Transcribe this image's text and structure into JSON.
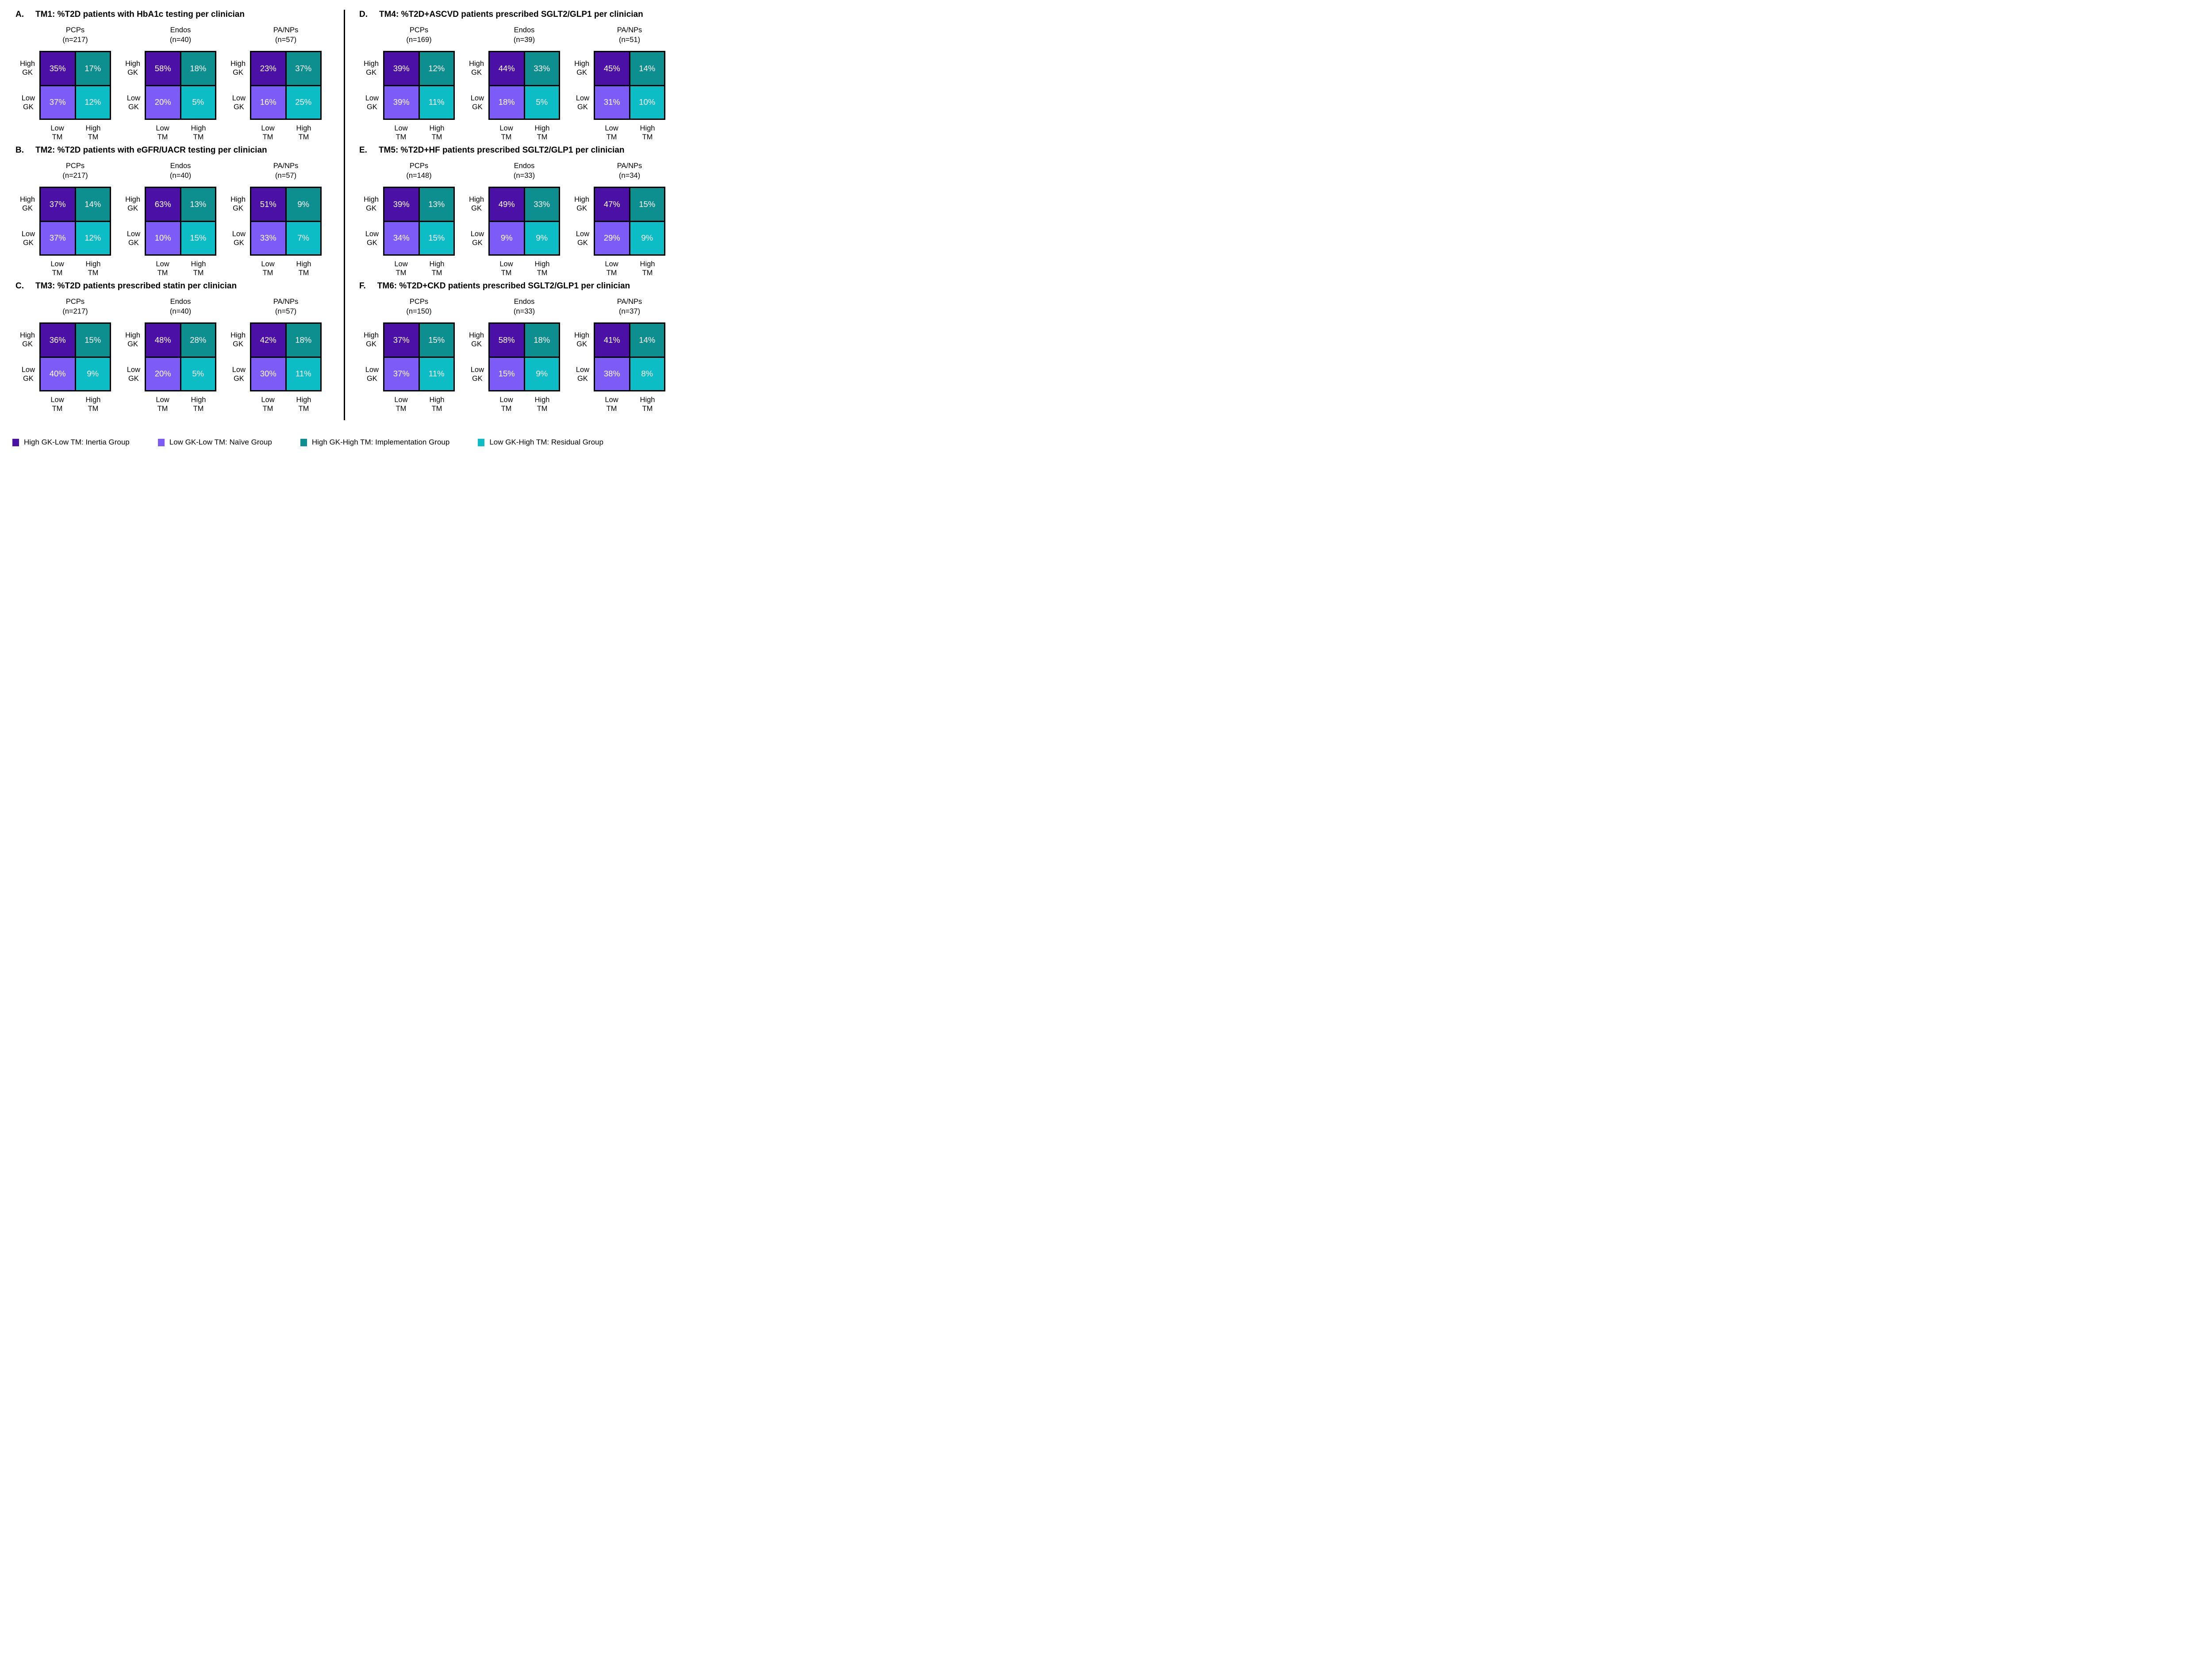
{
  "ui": {
    "row_labels": [
      [
        "High",
        "GK"
      ],
      [
        "Low",
        "GK"
      ]
    ],
    "col_labels": [
      [
        "Low",
        "TM"
      ],
      [
        "High",
        "TM"
      ]
    ]
  },
  "colors": {
    "inertia": "#4B11A7",
    "naive": "#7C5BF6",
    "implementation": "#0E8F8F",
    "residual": "#0CBDC5",
    "border": "#000000",
    "cell_text": "#FFFFFF"
  },
  "legend": [
    {
      "quadrant": "high_gk_low_tm",
      "label": "High GK-Low TM: Inertia Group",
      "color": "#4B11A7"
    },
    {
      "quadrant": "low_gk_low_tm",
      "label": "Low GK-Low TM: Naïve Group",
      "color": "#7C5BF6"
    },
    {
      "quadrant": "high_gk_high_tm",
      "label": "High GK-High TM: Implementation Group",
      "color": "#0E8F8F"
    },
    {
      "quadrant": "low_gk_high_tm",
      "label": "Low GK-High TM: Residual Group",
      "color": "#0CBDC5"
    }
  ],
  "chart_data": [
    {
      "type": "heatmap",
      "letter": "A.",
      "title": "TM1: %T2D patients with HbA1c testing per clinician",
      "rows": [
        "High GK",
        "Low GK"
      ],
      "cols": [
        "Low TM",
        "High TM"
      ],
      "groups": [
        {
          "name": "PCPs",
          "n": 217,
          "n_label": "(n=217)",
          "values": [
            [
              35,
              17
            ],
            [
              37,
              12
            ]
          ]
        },
        {
          "name": "Endos",
          "n": 40,
          "n_label": "(n=40)",
          "values": [
            [
              58,
              18
            ],
            [
              20,
              5
            ]
          ]
        },
        {
          "name": "PA/NPs",
          "n": 57,
          "n_label": "(n=57)",
          "values": [
            [
              23,
              37
            ],
            [
              16,
              25
            ]
          ]
        }
      ]
    },
    {
      "type": "heatmap",
      "letter": "B.",
      "title": "TM2: %T2D patients with eGFR/UACR testing per clinician",
      "rows": [
        "High GK",
        "Low GK"
      ],
      "cols": [
        "Low TM",
        "High TM"
      ],
      "groups": [
        {
          "name": "PCPs",
          "n": 217,
          "n_label": "(n=217)",
          "values": [
            [
              37,
              14
            ],
            [
              37,
              12
            ]
          ]
        },
        {
          "name": "Endos",
          "n": 40,
          "n_label": "(n=40)",
          "values": [
            [
              63,
              13
            ],
            [
              10,
              15
            ]
          ]
        },
        {
          "name": "PA/NPs",
          "n": 57,
          "n_label": "(n=57)",
          "values": [
            [
              51,
              9
            ],
            [
              33,
              7
            ]
          ]
        }
      ]
    },
    {
      "type": "heatmap",
      "letter": "C.",
      "title": "TM3: %T2D patients prescribed statin per clinician",
      "rows": [
        "High GK",
        "Low GK"
      ],
      "cols": [
        "Low TM",
        "High TM"
      ],
      "groups": [
        {
          "name": "PCPs",
          "n": 217,
          "n_label": "(n=217)",
          "values": [
            [
              36,
              15
            ],
            [
              40,
              9
            ]
          ]
        },
        {
          "name": "Endos",
          "n": 40,
          "n_label": "(n=40)",
          "values": [
            [
              48,
              28
            ],
            [
              20,
              5
            ]
          ]
        },
        {
          "name": "PA/NPs",
          "n": 57,
          "n_label": "(n=57)",
          "values": [
            [
              42,
              18
            ],
            [
              30,
              11
            ]
          ]
        }
      ]
    },
    {
      "type": "heatmap",
      "letter": "D.",
      "title": "TM4: %T2D+ASCVD patients prescribed SGLT2/GLP1 per clinician",
      "rows": [
        "High GK",
        "Low GK"
      ],
      "cols": [
        "Low TM",
        "High TM"
      ],
      "groups": [
        {
          "name": "PCPs",
          "n": 169,
          "n_label": "(n=169)",
          "values": [
            [
              39,
              12
            ],
            [
              39,
              11
            ]
          ]
        },
        {
          "name": "Endos",
          "n": 39,
          "n_label": "(n=39)",
          "values": [
            [
              44,
              33
            ],
            [
              18,
              5
            ]
          ]
        },
        {
          "name": "PA/NPs",
          "n": 51,
          "n_label": "(n=51)",
          "values": [
            [
              45,
              14
            ],
            [
              31,
              10
            ]
          ]
        }
      ]
    },
    {
      "type": "heatmap",
      "letter": "E.",
      "title": "TM5: %T2D+HF patients prescribed SGLT2/GLP1 per clinician",
      "rows": [
        "High GK",
        "Low GK"
      ],
      "cols": [
        "Low TM",
        "High TM"
      ],
      "groups": [
        {
          "name": "PCPs",
          "n": 148,
          "n_label": "(n=148)",
          "values": [
            [
              39,
              13
            ],
            [
              34,
              15
            ]
          ]
        },
        {
          "name": "Endos",
          "n": 33,
          "n_label": "(n=33)",
          "values": [
            [
              49,
              33
            ],
            [
              9,
              9
            ]
          ]
        },
        {
          "name": "PA/NPs",
          "n": 34,
          "n_label": "(n=34)",
          "values": [
            [
              47,
              15
            ],
            [
              29,
              9
            ]
          ]
        }
      ]
    },
    {
      "type": "heatmap",
      "letter": "F.",
      "title": "TM6: %T2D+CKD patients prescribed SGLT2/GLP1 per clinician",
      "rows": [
        "High GK",
        "Low GK"
      ],
      "cols": [
        "Low TM",
        "High TM"
      ],
      "groups": [
        {
          "name": "PCPs",
          "n": 150,
          "n_label": "(n=150)",
          "values": [
            [
              37,
              15
            ],
            [
              37,
              11
            ]
          ]
        },
        {
          "name": "Endos",
          "n": 33,
          "n_label": "(n=33)",
          "values": [
            [
              58,
              18
            ],
            [
              15,
              9
            ]
          ]
        },
        {
          "name": "PA/NPs",
          "n": 37,
          "n_label": "(n=37)",
          "values": [
            [
              41,
              14
            ],
            [
              38,
              8
            ]
          ]
        }
      ]
    }
  ]
}
